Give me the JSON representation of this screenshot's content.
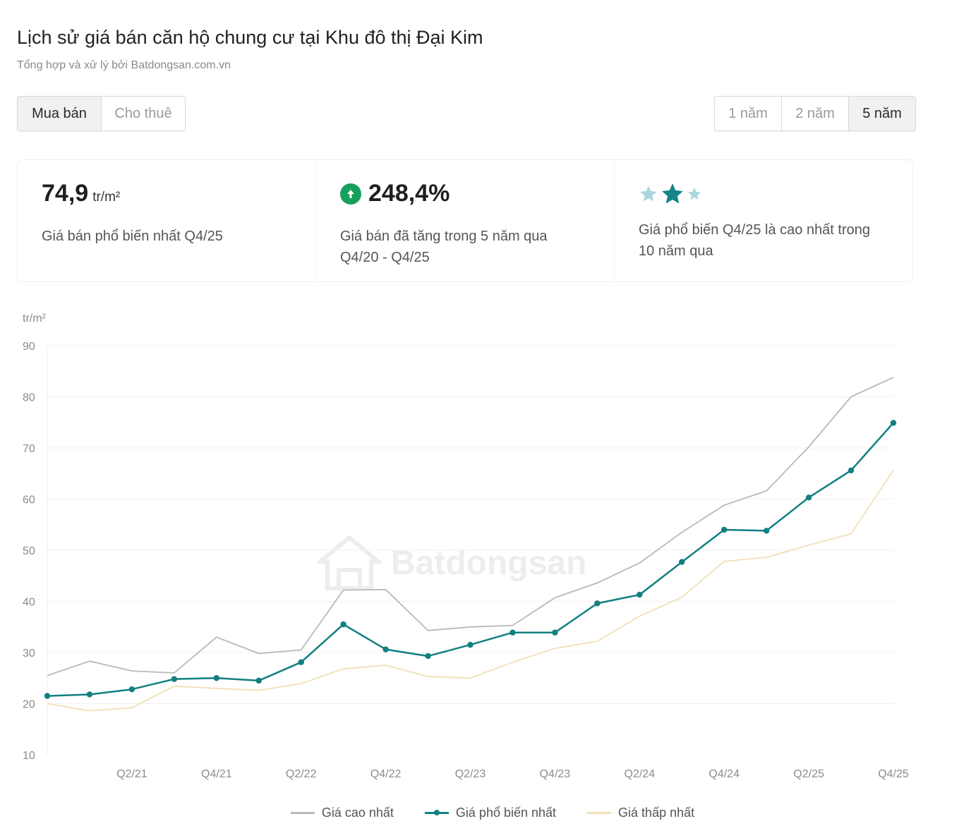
{
  "header": {
    "title": "Lịch sử giá bán căn hộ chung cư tại Khu đô thị Đại Kim",
    "subtitle": "Tổng hợp và xử lý bởi Batdongsan.com.vn"
  },
  "type_toggle": {
    "buy_label": "Mua bán",
    "rent_label": "Cho thuê",
    "selected": "Mua bán"
  },
  "range_toggle": {
    "options": [
      "1 năm",
      "2 năm",
      "5 năm"
    ],
    "selected": "5 năm"
  },
  "stats": {
    "price": {
      "value": "74,9",
      "unit": "tr/m²",
      "desc": "Giá bán phổ biến nhất Q4/25"
    },
    "growth": {
      "value": "248,4%",
      "desc_line1": "Giá bán đã tăng trong 5 năm qua",
      "desc_line2": "Q4/20 - Q4/25",
      "icon": "arrow-up-circle-icon"
    },
    "rating": {
      "stars_filled": 1,
      "stars_total": 3,
      "desc_line1": "Giá phổ biến Q4/25 là cao nhất trong",
      "desc_line2": "10 năm qua"
    }
  },
  "watermark": "Batdongsan",
  "colors": {
    "high": "#b9b9bd",
    "common": "#127f81",
    "low": "#f2dfb8",
    "growth_icon": "#17a05d",
    "star_main": "#14838a",
    "star_light": "#a9d8dc"
  },
  "chart_data": {
    "type": "line",
    "title": "Lịch sử giá bán căn hộ chung cư tại Khu đô thị Đại Kim",
    "ylabel": "tr/m²",
    "xlabel": "",
    "ylim": [
      10,
      90
    ],
    "yticks": [
      10,
      20,
      30,
      40,
      50,
      60,
      70,
      80,
      90
    ],
    "x": [
      "Q4/20",
      "Q1/21",
      "Q2/21",
      "Q3/21",
      "Q4/21",
      "Q1/22",
      "Q2/22",
      "Q3/22",
      "Q4/22",
      "Q1/23",
      "Q2/23",
      "Q3/23",
      "Q4/23",
      "Q1/24",
      "Q2/24",
      "Q3/24",
      "Q4/24",
      "Q1/25",
      "Q2/25",
      "Q3/25",
      "Q4/25"
    ],
    "xtick_labels": [
      "Q2/21",
      "Q4/21",
      "Q2/22",
      "Q4/22",
      "Q2/23",
      "Q4/23",
      "Q2/24",
      "Q4/24",
      "Q2/25",
      "Q4/25"
    ],
    "grid": true,
    "legend_position": "bottom",
    "series": [
      {
        "name": "Giá cao nhất",
        "key": "high",
        "markers": false,
        "values": [
          25.5,
          28.3,
          26.4,
          26,
          33,
          29.8,
          30.5,
          42.2,
          42.3,
          34.3,
          35,
          35.3,
          40.7,
          43.6,
          47.5,
          53.5,
          58.8,
          61.6,
          70.2,
          80,
          83.8
        ]
      },
      {
        "name": "Giá phổ biến nhất",
        "key": "common",
        "markers": true,
        "values": [
          21.5,
          21.8,
          22.8,
          24.8,
          25,
          24.5,
          28.1,
          35.5,
          30.6,
          29.3,
          31.5,
          33.9,
          33.9,
          39.6,
          41.3,
          47.7,
          54,
          53.8,
          60.3,
          65.6,
          74.9
        ]
      },
      {
        "name": "Giá thấp nhất",
        "key": "low",
        "markers": false,
        "values": [
          20,
          18.6,
          19.2,
          23.4,
          23,
          22.6,
          23.9,
          26.8,
          27.5,
          25.3,
          25,
          28.1,
          30.8,
          32.2,
          37.1,
          40.8,
          47.8,
          48.6,
          51,
          53.2,
          65.6
        ]
      }
    ]
  }
}
